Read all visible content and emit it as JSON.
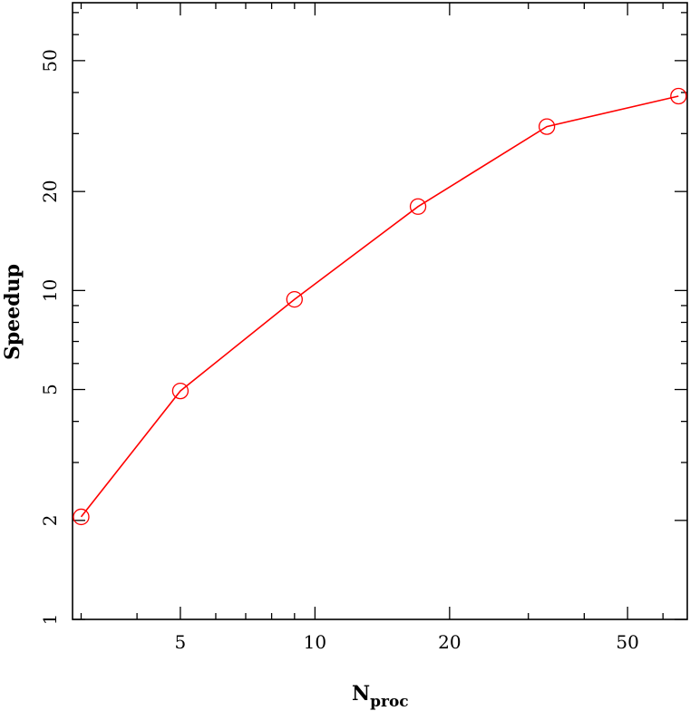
{
  "chart_data": {
    "type": "line",
    "title": "",
    "xlabel": "N",
    "xlabel_subscript": "proc",
    "ylabel": "Speedup",
    "xscale": "log",
    "yscale": "log",
    "xlim": [
      2.87,
      68
    ],
    "ylim": [
      1,
      75
    ],
    "xticks": [
      5,
      10,
      20,
      50
    ],
    "xtick_labels": [
      "5",
      "10",
      "20",
      "50"
    ],
    "yticks": [
      1,
      2,
      5,
      10,
      20,
      50
    ],
    "ytick_labels": [
      "1",
      "2",
      "5",
      "10",
      "20",
      "50"
    ],
    "grid": false,
    "series": [
      {
        "color": "#ff0000",
        "marker": "open-circle",
        "x": [
          3,
          5,
          9,
          17,
          33,
          65
        ],
        "y": [
          2.05,
          4.95,
          9.4,
          18.0,
          31.5,
          39.0
        ]
      }
    ]
  }
}
